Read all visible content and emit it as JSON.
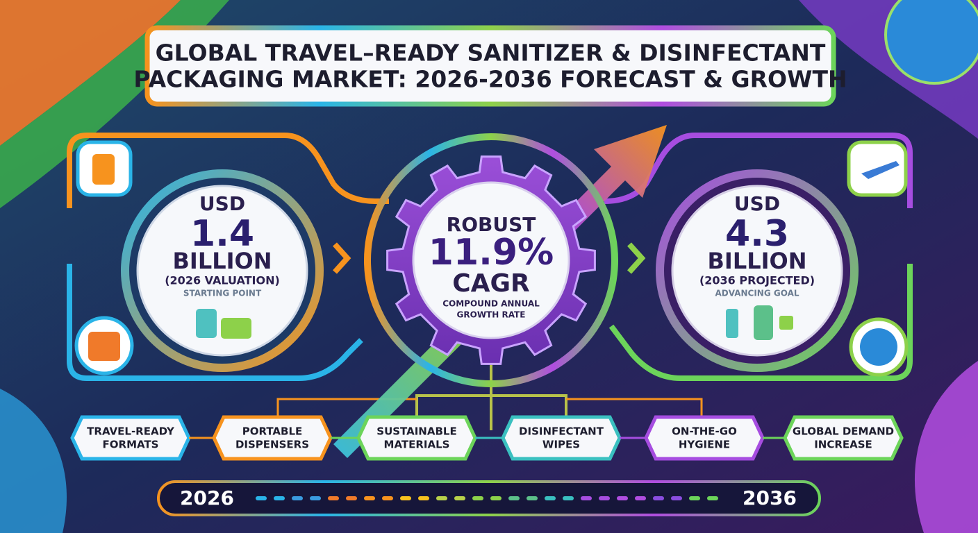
{
  "header": {
    "title_lines": [
      "GLOBAL TRAVEL–READY SANITIZER & DISINFECTANT",
      "PACKAGING MARKET: 2026-2036 FORECAST & GROWTH"
    ]
  },
  "left_panel": {
    "currency": "USD",
    "amount": "1.4",
    "unit": "BILLION",
    "note": "(2026 VALUATION)",
    "caption": "STARTING POINT"
  },
  "center_panel": {
    "label": "ROBUST",
    "rate": "11.9%",
    "unit": "CAGR",
    "caption_lines": [
      "COMPOUND ANNUAL",
      "GROWTH RATE"
    ]
  },
  "right_panel": {
    "currency": "USD",
    "amount": "4.3",
    "unit": "BILLION",
    "note": "(2036 PROJECTED)",
    "caption": "ADVANCING GOAL"
  },
  "features": [
    [
      "TRAVEL-READY",
      "FORMATS"
    ],
    [
      "PORTABLE",
      "DISPENSERS"
    ],
    [
      "SUSTAINABLE",
      "MATERIALS"
    ],
    [
      "DISINFECTANT",
      "WIPES"
    ],
    [
      "ON-THE-GO",
      "HYGIENE"
    ],
    [
      "GLOBAL DEMAND",
      "INCREASE"
    ]
  ],
  "timeline": {
    "start": "2026",
    "end": "2036"
  }
}
